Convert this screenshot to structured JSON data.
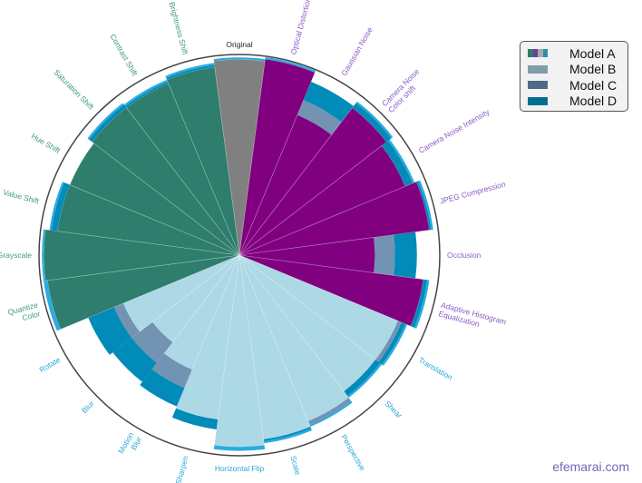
{
  "chart_data": {
    "type": "polar-bar-stacked",
    "title": "",
    "categories": [
      "Original",
      "Optical Distortion",
      "Gaussian Noise",
      "Camera Noise\nColor shift",
      "Camera Noise Intensity",
      "JPEG Compression",
      "Occlusion",
      "Adaptive Histogram\nEqualization",
      "Translation",
      "Shear",
      "Perspective",
      "Scale",
      "Horizontal Flip",
      "Sharpen",
      "Motion\nBlur",
      "Blur",
      "Rotate",
      "Quantize\nColor",
      "Grayscale",
      "Value Shift",
      "Hue Shift",
      "Saturation Shift",
      "Contrast Shift",
      "Brightness Shift"
    ],
    "category_groups": [
      "original",
      "noise",
      "noise",
      "noise",
      "noise",
      "noise",
      "noise",
      "noise",
      "geometric",
      "geometric",
      "geometric",
      "geometric",
      "geometric",
      "geometric",
      "geometric",
      "geometric",
      "geometric",
      "color",
      "color",
      "color",
      "color",
      "color",
      "color",
      "color"
    ],
    "group_colors": {
      "original": "#808080",
      "noise": "#800080",
      "geometric": "#add8e6",
      "color": "#2e7d6d"
    },
    "label_colors": {
      "original": "#222222",
      "noise": "#8a5cc8",
      "geometric": "#2aa8d8",
      "color": "#3f9a82"
    },
    "radial_range": [
      0,
      1
    ],
    "series": [
      {
        "name": "Model A",
        "values": [
          0.98,
          0.99,
          0.76,
          0.93,
          0.9,
          0.96,
          0.68,
          0.93,
          0.86,
          0.86,
          0.9,
          0.93,
          0.96,
          0.83,
          0.62,
          0.55,
          0.63,
          0.97,
          0.98,
          0.92,
          0.92,
          0.93,
          0.93,
          0.95
        ]
      },
      {
        "name": "Model B",
        "values": [
          0,
          0,
          0.08,
          0,
          0,
          0,
          0.1,
          0,
          0.02,
          0,
          0.02,
          0,
          0,
          0,
          0.1,
          0.13,
          0.05,
          0,
          0,
          0,
          0,
          0,
          0,
          0
        ]
      },
      {
        "name": "Model C",
        "values": [
          0,
          0,
          0.1,
          0.03,
          0.04,
          0.01,
          0.11,
          0.02,
          0.02,
          0.03,
          0,
          0.01,
          0,
          0.05,
          0.1,
          0.12,
          0.14,
          0,
          0,
          0.03,
          0,
          0.02,
          0.01,
          0.01
        ]
      },
      {
        "name": "Model D",
        "values": [
          0.01,
          0.01,
          0,
          0.01,
          0.01,
          0.01,
          0,
          0.01,
          0.01,
          0.01,
          0.01,
          0.01,
          0.02,
          0,
          0,
          0,
          0,
          0.02,
          0.01,
          0.01,
          0,
          0.01,
          0.01,
          0.01
        ]
      }
    ],
    "series_colors": {
      "Model B": "#7393b3",
      "Model C": "#008bb9",
      "Model D": "#29abe2"
    },
    "legend_position": "top-right",
    "grid": false
  },
  "legend": {
    "items": [
      {
        "label": "Model A",
        "colors": [
          "#2e7d6d",
          "#6a3fa0",
          "#a8a8a8",
          "#2a8fb0"
        ]
      },
      {
        "label": "Model B",
        "colors": [
          "#7f9ea8"
        ]
      },
      {
        "label": "Model C",
        "colors": [
          "#4f6a88"
        ]
      },
      {
        "label": "Model D",
        "colors": [
          "#006e8f"
        ]
      }
    ]
  },
  "watermark": "efemarai.com"
}
